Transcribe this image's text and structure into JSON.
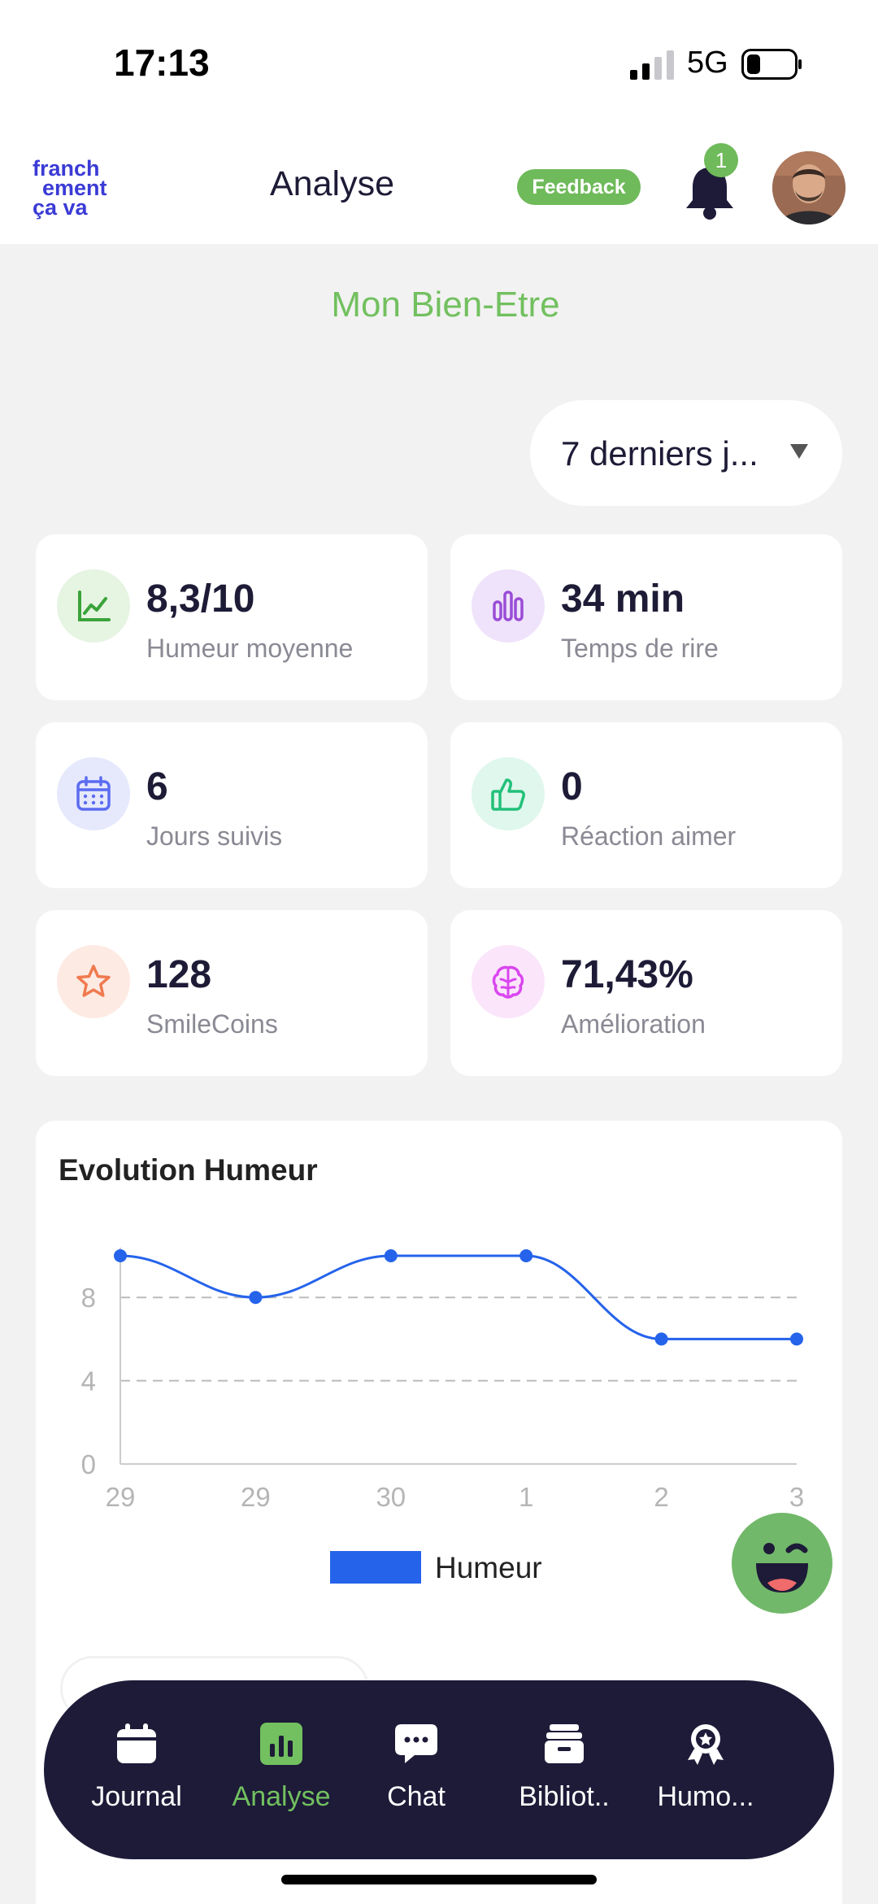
{
  "status_bar": {
    "time": "17:13",
    "network": "5G"
  },
  "header": {
    "logo_text": [
      "franch",
      "ement",
      "ça va"
    ],
    "title": "Analyse",
    "feedback_label": "Feedback",
    "notification_count": "1"
  },
  "section_title": "Mon Bien-Etre",
  "period_select": {
    "selected": "7 derniers j..."
  },
  "stats": [
    {
      "value": "8,3/10",
      "label": "Humeur moyenne",
      "icon": "chart-line-icon",
      "color": "#3aa33a",
      "bg": "#e6f4e2"
    },
    {
      "value": "34 min",
      "label": "Temps de rire",
      "icon": "bar-chart-icon",
      "color": "#9a4dd6",
      "bg": "#efe3fb"
    },
    {
      "value": "6",
      "label": "Jours suivis",
      "icon": "calendar-icon",
      "color": "#5b6cf0",
      "bg": "#e6e9fc"
    },
    {
      "value": "0",
      "label": "Réaction aimer",
      "icon": "thumbs-up-icon",
      "color": "#22c07a",
      "bg": "#dff7ec"
    },
    {
      "value": "128",
      "label": "SmileCoins",
      "icon": "star-icon",
      "color": "#ef7a4f",
      "bg": "#fdeae3"
    },
    {
      "value": "71,43%",
      "label": "Amélioration",
      "icon": "brain-icon",
      "color": "#d946ef",
      "bg": "#fbe5fb"
    }
  ],
  "chart_data": {
    "type": "line",
    "title": "Evolution Humeur",
    "categories": [
      "29",
      "29",
      "30",
      "1",
      "2",
      "3"
    ],
    "series": [
      {
        "name": "Humeur",
        "values": [
          10,
          8,
          10,
          10,
          6,
          6
        ],
        "color": "#2563eb"
      }
    ],
    "ylim": [
      0,
      10
    ],
    "yticks": [
      0,
      4,
      8
    ],
    "grid": true,
    "legend": "bottom-center"
  },
  "tabbar": {
    "items": [
      {
        "label": "Journal",
        "icon": "calendar-icon",
        "active": false
      },
      {
        "label": "Analyse",
        "icon": "analytics-icon",
        "active": true
      },
      {
        "label": "Chat",
        "icon": "chat-icon",
        "active": false
      },
      {
        "label": "Bibliot..",
        "icon": "library-icon",
        "active": false
      },
      {
        "label": "Humo...",
        "icon": "award-icon",
        "active": false
      }
    ]
  }
}
